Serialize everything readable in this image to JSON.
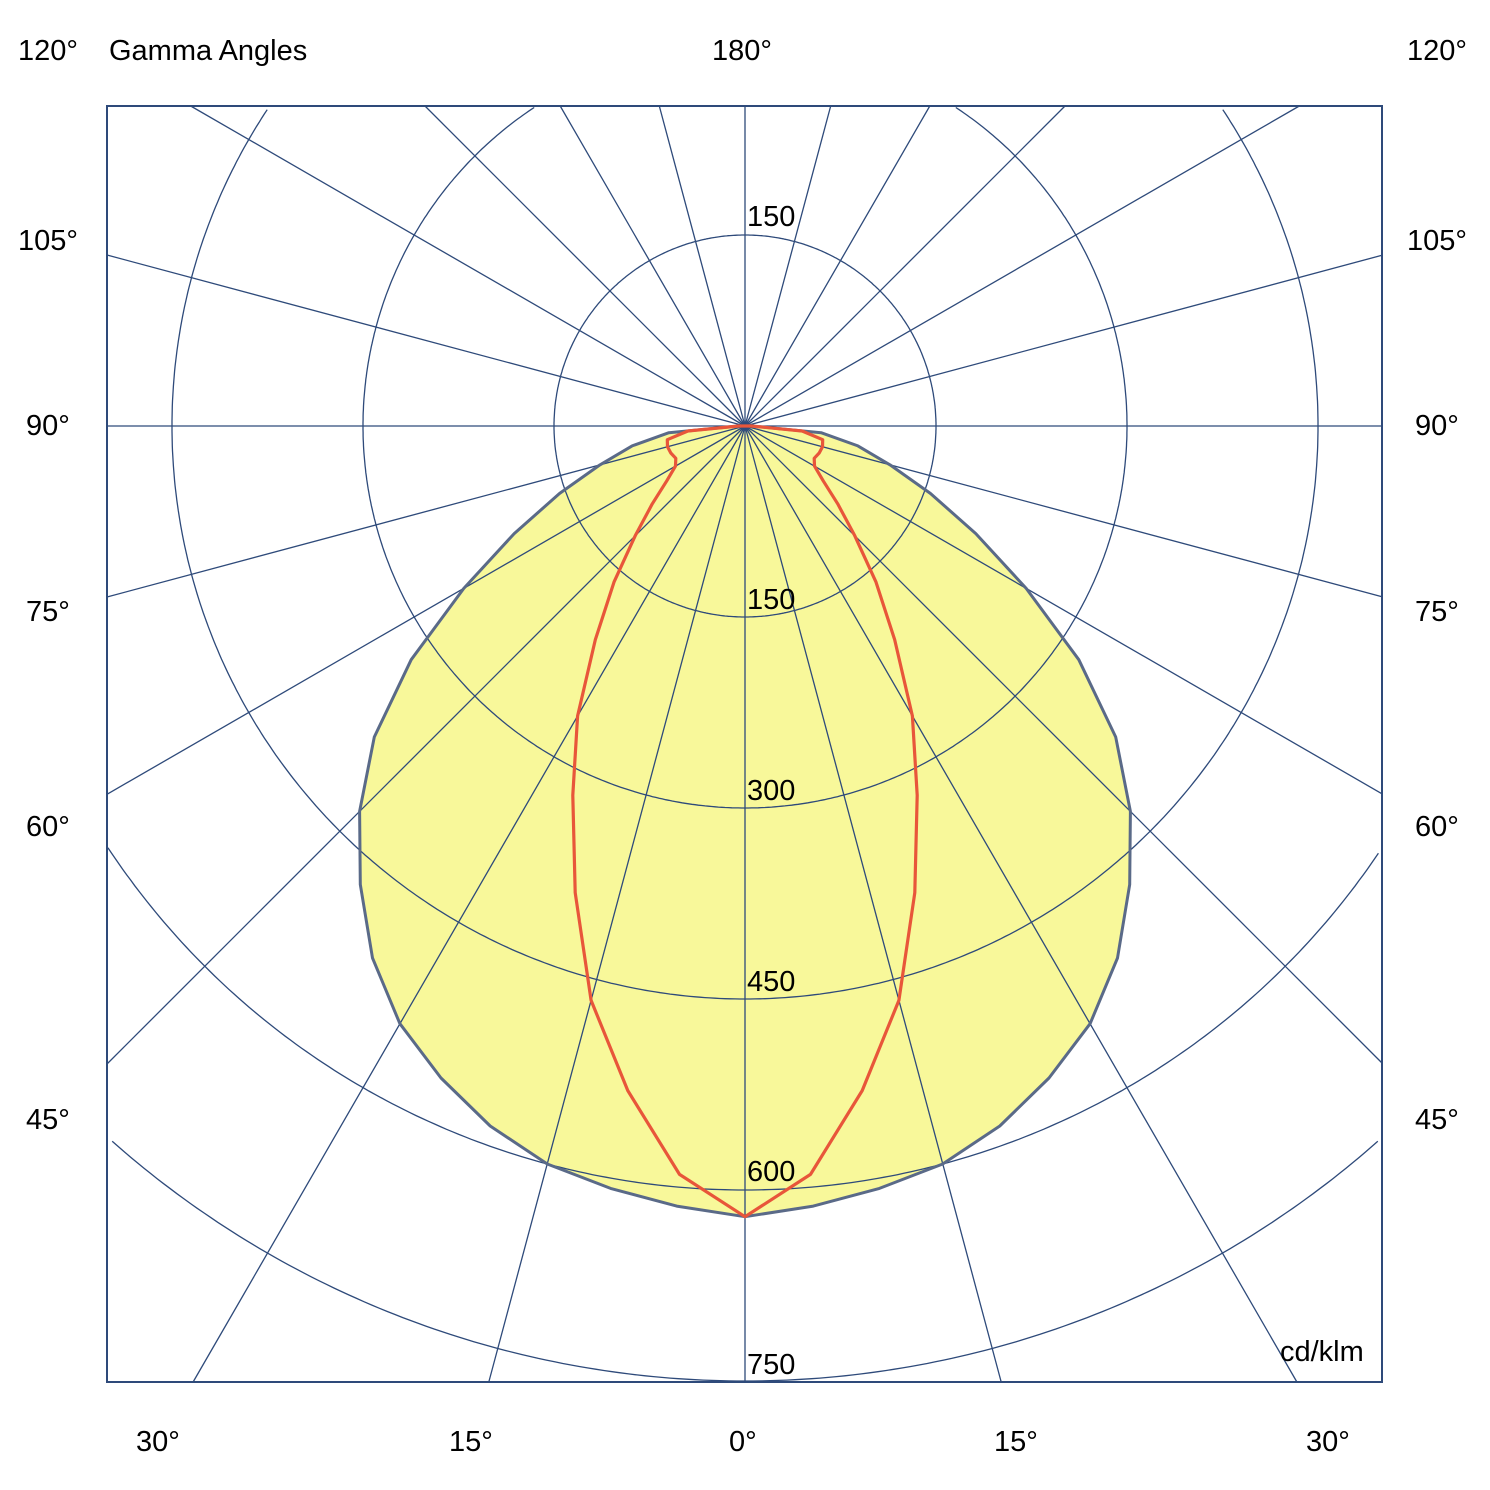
{
  "chart_data": {
    "type": "polar",
    "title": "Gamma Angles",
    "unit": "cd/klm",
    "top_label": "180°",
    "side_labels": [
      "120°",
      "105°",
      "90°",
      "75°",
      "60°",
      "45°"
    ],
    "bottom_labels": [
      "30°",
      "15°",
      "0°",
      "15°",
      "30°"
    ],
    "radial_ticks": [
      "150",
      "150",
      "300",
      "450",
      "600",
      "750"
    ],
    "radial_range": [
      0,
      900
    ],
    "radial_step": 150,
    "angular_step_deg": 15,
    "grid": true,
    "gamma": [
      0,
      5,
      10,
      15,
      20,
      25,
      30,
      35,
      40,
      45,
      50,
      55,
      60,
      65,
      70,
      75,
      80,
      85,
      90
    ],
    "series": [
      {
        "values": [
          621,
          615,
          608,
          600,
          585,
          565,
          542,
          510,
          470,
          428,
          380,
          320,
          255,
          200,
          155,
          118,
          90,
          60,
          5
        ],
        "color": "#F8F89A",
        "stroke": "#5A6A88",
        "filled": true
      },
      {
        "values": [
          621,
          590,
          530,
          467,
          390,
          320,
          263,
          205,
          160,
          122,
          95,
          75,
          63,
          60,
          62,
          63,
          62,
          45,
          5
        ],
        "color": "#E8563A",
        "filled": false
      }
    ],
    "colors": {
      "grid": "#2E4A7A",
      "frame": "#2E4A7A"
    }
  }
}
